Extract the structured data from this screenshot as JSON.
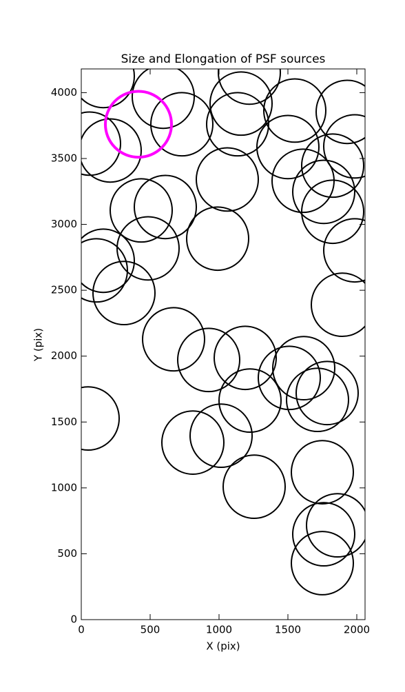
{
  "chart_data": {
    "type": "ellipse",
    "title": "Size and Elongation of PSF sources",
    "x_label": "X (pix)",
    "y_label": "Y (pix)",
    "xlim": [
      0,
      2060
    ],
    "ylim": [
      0,
      4180
    ],
    "xticks": [
      0,
      500,
      1000,
      1500,
      2000
    ],
    "yticks": [
      0,
      500,
      1000,
      1500,
      2000,
      2500,
      3000,
      3500,
      4000
    ],
    "series": [
      {
        "color": "#000000",
        "linewidth": 2,
        "width": 450,
        "height": 480,
        "x": [
          50,
          810,
          1015,
          1255,
          1225,
          1190,
          925,
          670,
          1510,
          1615,
          1750,
          1750,
          1860,
          1760,
          1715,
          1785,
          310,
          110,
          160,
          485,
          435,
          610,
          990,
          1895,
          1985,
          1825,
          1610,
          1760,
          1825,
          1060,
          1500,
          1550,
          1930,
          1135,
          1160,
          1220,
          730,
          595,
          210,
          60,
          1985,
          160
        ],
        "y": [
          1527,
          1344,
          1396,
          1009,
          1663,
          1987,
          1971,
          2128,
          1835,
          1909,
          1119,
          429,
          716,
          648,
          1668,
          1720,
          2479,
          2651,
          2724,
          2818,
          3106,
          3132,
          2892,
          2390,
          2803,
          3096,
          3331,
          3247,
          3446,
          3341,
          3587,
          3864,
          3854,
          3760,
          3917,
          4152,
          3760,
          3969,
          3561,
          3613,
          3592,
          4126
        ]
      },
      {
        "color": "#ff00ff",
        "linewidth": 4,
        "width": 480,
        "height": 500,
        "x": [
          415
        ],
        "y": [
          3760
        ]
      }
    ]
  }
}
